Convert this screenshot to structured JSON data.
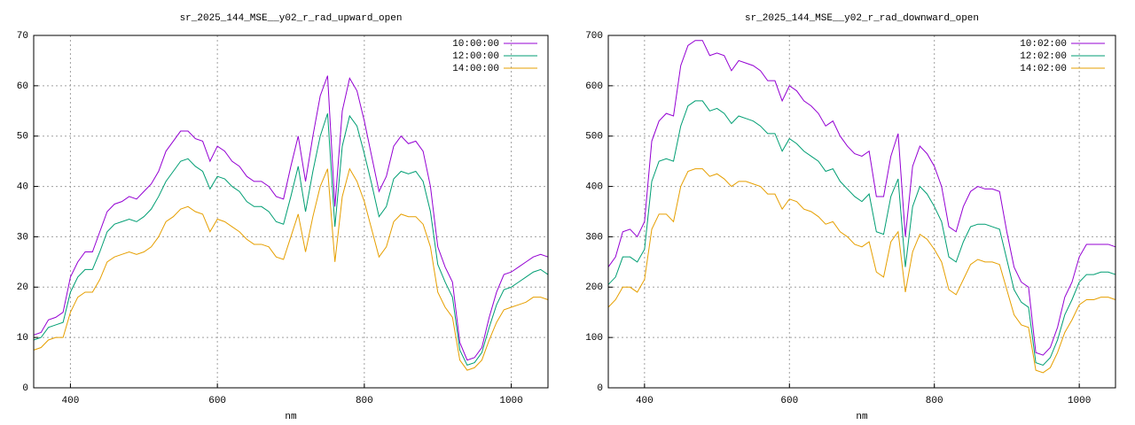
{
  "chart_data": [
    {
      "type": "line",
      "title": "sr_2025_144_MSE__y02_r_rad_upward_open",
      "x_label": "nm",
      "x": [
        350,
        360,
        370,
        380,
        390,
        400,
        410,
        420,
        430,
        440,
        450,
        460,
        470,
        480,
        490,
        500,
        510,
        520,
        530,
        540,
        550,
        560,
        570,
        580,
        590,
        600,
        610,
        620,
        630,
        640,
        650,
        660,
        670,
        680,
        690,
        700,
        710,
        720,
        730,
        740,
        750,
        760,
        770,
        780,
        790,
        800,
        810,
        820,
        830,
        840,
        850,
        860,
        870,
        880,
        890,
        900,
        910,
        920,
        930,
        940,
        950,
        960,
        970,
        980,
        990,
        1000,
        1010,
        1020,
        1030,
        1040,
        1050
      ],
      "xlim": [
        350,
        1050
      ],
      "xticks": [
        400,
        600,
        800,
        1000
      ],
      "ylim": [
        0,
        70
      ],
      "yticks": [
        0,
        10,
        20,
        30,
        40,
        50,
        60,
        70
      ],
      "grid": true,
      "legend": "top-right",
      "series": [
        {
          "name": "10:00:00",
          "color": "#9400d3",
          "values": [
            10.5,
            11,
            13.5,
            14,
            15,
            22,
            25,
            27,
            27,
            31,
            35,
            36.5,
            37,
            38,
            37.5,
            39,
            40.5,
            43,
            47,
            49,
            51,
            51,
            49.5,
            49,
            45,
            48,
            47,
            45,
            44,
            42,
            41,
            41,
            40,
            38,
            37.5,
            44,
            50,
            41,
            50,
            58,
            62,
            36,
            55,
            61.5,
            59,
            53,
            46,
            39,
            42,
            48,
            50,
            48.5,
            49,
            47,
            40,
            28,
            24,
            21,
            9,
            5.5,
            6,
            8,
            14,
            19,
            22.5,
            23,
            24,
            25,
            26,
            26.5,
            26
          ]
        },
        {
          "name": "12:00:00",
          "color": "#009e73",
          "values": [
            9.5,
            10,
            12,
            12.5,
            13,
            19,
            22,
            23.5,
            23.5,
            27,
            31,
            32.5,
            33,
            33.5,
            33,
            34,
            35.5,
            38,
            41,
            43,
            45,
            45.5,
            44,
            43,
            39.5,
            42,
            41.5,
            40,
            39,
            37,
            36,
            36,
            35,
            33,
            32.5,
            38,
            44,
            35,
            43,
            50,
            54.5,
            32,
            48,
            54,
            52,
            46.5,
            40.5,
            34,
            36,
            41.5,
            43,
            42.5,
            43,
            41,
            35,
            24.5,
            21,
            18,
            7.5,
            4.5,
            5,
            7,
            12,
            16.5,
            19.5,
            20,
            21,
            22,
            23,
            23.5,
            22.5
          ]
        },
        {
          "name": "14:00:00",
          "color": "#e69f00",
          "values": [
            7.5,
            8,
            9.5,
            10,
            10,
            15,
            18,
            19,
            19,
            21.5,
            25,
            26,
            26.5,
            27,
            26.5,
            27,
            28,
            30,
            33,
            34,
            35.5,
            36,
            35,
            34.5,
            31,
            33.5,
            33,
            32,
            31,
            29.5,
            28.5,
            28.5,
            28,
            26,
            25.5,
            30,
            34.5,
            27,
            34,
            40,
            43.5,
            25,
            38,
            43.5,
            41,
            37,
            31.5,
            26,
            28,
            33,
            34.5,
            34,
            34,
            32.5,
            28,
            19,
            16,
            14,
            5.5,
            3.5,
            4,
            5.5,
            9.5,
            13,
            15.5,
            16,
            16.5,
            17,
            18,
            18,
            17.5
          ]
        }
      ]
    },
    {
      "type": "line",
      "title": "sr_2025_144_MSE__y02_r_rad_downward_open",
      "x_label": "nm",
      "x": [
        350,
        360,
        370,
        380,
        390,
        400,
        410,
        420,
        430,
        440,
        450,
        460,
        470,
        480,
        490,
        500,
        510,
        520,
        530,
        540,
        550,
        560,
        570,
        580,
        590,
        600,
        610,
        620,
        630,
        640,
        650,
        660,
        670,
        680,
        690,
        700,
        710,
        720,
        730,
        740,
        750,
        760,
        770,
        780,
        790,
        800,
        810,
        820,
        830,
        840,
        850,
        860,
        870,
        880,
        890,
        900,
        910,
        920,
        930,
        940,
        950,
        960,
        970,
        980,
        990,
        1000,
        1010,
        1020,
        1030,
        1040,
        1050
      ],
      "xlim": [
        350,
        1050
      ],
      "xticks": [
        400,
        600,
        800,
        1000
      ],
      "ylim": [
        0,
        700
      ],
      "yticks": [
        0,
        100,
        200,
        300,
        400,
        500,
        600,
        700
      ],
      "grid": true,
      "legend": "top-right",
      "series": [
        {
          "name": "10:02:00",
          "color": "#9400d3",
          "values": [
            240,
            260,
            310,
            315,
            300,
            330,
            490,
            530,
            545,
            540,
            640,
            680,
            690,
            690,
            660,
            665,
            660,
            630,
            650,
            645,
            640,
            630,
            610,
            610,
            570,
            600,
            590,
            570,
            560,
            545,
            520,
            530,
            500,
            480,
            465,
            460,
            470,
            380,
            380,
            460,
            505,
            300,
            440,
            480,
            465,
            440,
            400,
            320,
            310,
            360,
            390,
            400,
            395,
            395,
            390,
            310,
            240,
            210,
            200,
            70,
            65,
            80,
            120,
            180,
            210,
            260,
            285,
            285,
            285,
            285,
            280
          ]
        },
        {
          "name": "12:02:00",
          "color": "#009e73",
          "values": [
            205,
            220,
            260,
            260,
            250,
            275,
            410,
            450,
            455,
            450,
            520,
            560,
            570,
            570,
            550,
            555,
            545,
            525,
            540,
            535,
            530,
            520,
            505,
            505,
            470,
            495,
            485,
            470,
            460,
            450,
            430,
            435,
            410,
            395,
            380,
            370,
            385,
            310,
            305,
            380,
            415,
            240,
            360,
            400,
            385,
            360,
            330,
            260,
            250,
            290,
            320,
            325,
            325,
            320,
            315,
            255,
            195,
            170,
            160,
            50,
            45,
            60,
            95,
            145,
            175,
            210,
            225,
            225,
            230,
            230,
            225
          ]
        },
        {
          "name": "14:02:00",
          "color": "#e69f00",
          "values": [
            160,
            175,
            200,
            200,
            190,
            215,
            315,
            345,
            345,
            330,
            400,
            430,
            435,
            435,
            420,
            425,
            415,
            400,
            410,
            410,
            405,
            400,
            385,
            385,
            355,
            375,
            370,
            355,
            350,
            340,
            325,
            330,
            310,
            300,
            285,
            280,
            290,
            230,
            220,
            290,
            310,
            190,
            270,
            305,
            295,
            275,
            250,
            195,
            185,
            215,
            245,
            255,
            250,
            250,
            245,
            195,
            145,
            125,
            120,
            35,
            30,
            40,
            70,
            110,
            135,
            165,
            175,
            175,
            180,
            180,
            175
          ]
        }
      ]
    }
  ]
}
